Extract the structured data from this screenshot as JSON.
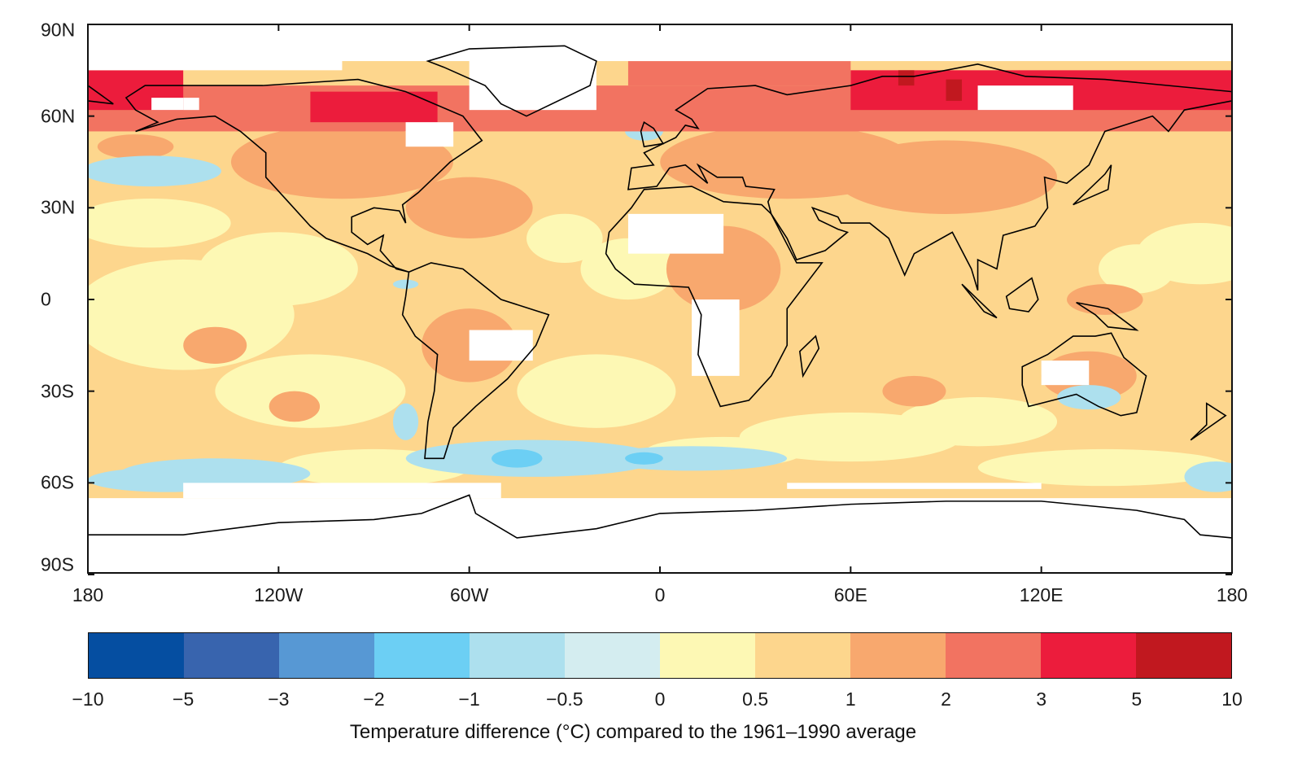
{
  "chart_data": {
    "type": "heatmap",
    "title": "",
    "xlabel": "",
    "ylabel": "",
    "x_ticks": [
      "180",
      "120W",
      "60W",
      "0",
      "60E",
      "120E",
      "180"
    ],
    "x_tick_values": [
      -180,
      -120,
      -60,
      0,
      60,
      120,
      180
    ],
    "y_ticks": [
      "90N",
      "60N",
      "30N",
      "0",
      "30S",
      "60S",
      "90S"
    ],
    "y_tick_values": [
      90,
      60,
      30,
      0,
      -30,
      -60,
      -90
    ],
    "xlim": [
      -180,
      180
    ],
    "ylim": [
      -90,
      90
    ],
    "colorbar": {
      "labels": [
        "−10",
        "−5",
        "−3",
        "−2",
        "−1",
        "−0.5",
        "0",
        "0.5",
        "1",
        "2",
        "3",
        "5",
        "10"
      ],
      "bounds": [
        -10,
        -5,
        -3,
        -2,
        -1,
        -0.5,
        0,
        0.5,
        1,
        2,
        3,
        5,
        10
      ],
      "colors": [
        "#054ea1",
        "#3864ae",
        "#5798d4",
        "#6ccff4",
        "#ade0ee",
        "#d4edf0",
        "#fdf8b4",
        "#fdd68d",
        "#f8a86e",
        "#f27361",
        "#ec1c3c",
        "#c1181f"
      ],
      "caption": "Temperature difference (°C) compared to the 1961–1990 average"
    },
    "missing_data_color": "#ffffff"
  }
}
